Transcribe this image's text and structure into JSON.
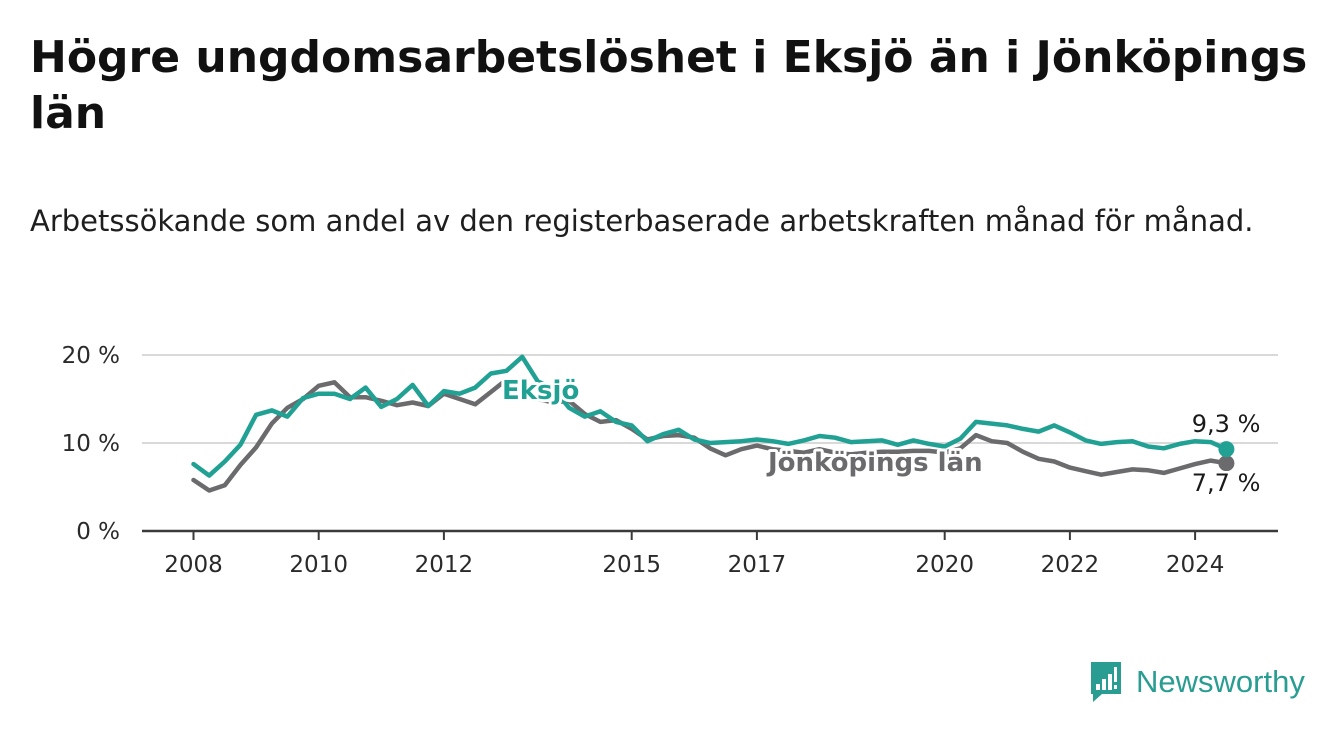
{
  "title": "Högre ungdomsarbetslöshet i Eksjö än i Jönköpings län",
  "subtitle": "Arbetssökande som andel av den registerbaserade arbetskraften månad för månad.",
  "brand": {
    "name": "Newsworthy",
    "logo_icon": "bar-chart-icon",
    "color": "#2a9d92"
  },
  "chart_data": {
    "type": "line",
    "title": "Högre ungdomsarbetslöshet i Eksjö än i Jönköpings län",
    "xlabel": "",
    "ylabel": "",
    "ylim": [
      0,
      20
    ],
    "xlim": [
      2008,
      2024.5
    ],
    "y_ticks": [
      0,
      10,
      20
    ],
    "y_tick_labels": [
      "0 %",
      "10 %",
      "20 %"
    ],
    "x_ticks": [
      2008,
      2010,
      2012,
      2015,
      2017,
      2020,
      2022,
      2024
    ],
    "x_tick_labels": [
      "2008",
      "2010",
      "2012",
      "2015",
      "2017",
      "2020",
      "2022",
      "2024"
    ],
    "grid": true,
    "series": [
      {
        "name": "Jönköpings län",
        "color": "#6b6b6e",
        "end_label": "7,7 %",
        "points": [
          [
            2008.0,
            5.8
          ],
          [
            2008.25,
            4.6
          ],
          [
            2008.5,
            5.2
          ],
          [
            2008.75,
            7.5
          ],
          [
            2009.0,
            9.5
          ],
          [
            2009.25,
            12.2
          ],
          [
            2009.5,
            14.0
          ],
          [
            2009.75,
            15.0
          ],
          [
            2010.0,
            16.5
          ],
          [
            2010.25,
            16.9
          ],
          [
            2010.5,
            15.2
          ],
          [
            2010.75,
            15.2
          ],
          [
            2011.0,
            14.8
          ],
          [
            2011.25,
            14.3
          ],
          [
            2011.5,
            14.6
          ],
          [
            2011.75,
            14.2
          ],
          [
            2012.0,
            15.6
          ],
          [
            2012.25,
            15.0
          ],
          [
            2012.5,
            14.4
          ],
          [
            2012.75,
            15.8
          ],
          [
            2013.0,
            17.2
          ],
          [
            2013.25,
            16.3
          ],
          [
            2013.5,
            15.0
          ],
          [
            2013.75,
            14.6
          ],
          [
            2014.0,
            14.8
          ],
          [
            2014.25,
            13.3
          ],
          [
            2014.5,
            12.4
          ],
          [
            2014.75,
            12.6
          ],
          [
            2015.0,
            11.6
          ],
          [
            2015.25,
            10.4
          ],
          [
            2015.5,
            10.8
          ],
          [
            2015.75,
            10.9
          ],
          [
            2016.0,
            10.6
          ],
          [
            2016.25,
            9.4
          ],
          [
            2016.5,
            8.6
          ],
          [
            2016.75,
            9.3
          ],
          [
            2017.0,
            9.7
          ],
          [
            2017.25,
            9.3
          ],
          [
            2017.5,
            9.1
          ],
          [
            2017.75,
            8.9
          ],
          [
            2018.0,
            9.3
          ],
          [
            2018.25,
            8.9
          ],
          [
            2018.5,
            8.7
          ],
          [
            2018.75,
            8.9
          ],
          [
            2019.0,
            9.0
          ],
          [
            2019.25,
            9.0
          ],
          [
            2019.5,
            9.1
          ],
          [
            2019.75,
            9.1
          ],
          [
            2020.0,
            8.9
          ],
          [
            2020.25,
            9.4
          ],
          [
            2020.5,
            10.9
          ],
          [
            2020.75,
            10.2
          ],
          [
            2021.0,
            10.0
          ],
          [
            2021.25,
            9.0
          ],
          [
            2021.5,
            8.2
          ],
          [
            2021.75,
            7.9
          ],
          [
            2022.0,
            7.2
          ],
          [
            2022.25,
            6.8
          ],
          [
            2022.5,
            6.4
          ],
          [
            2022.75,
            6.7
          ],
          [
            2023.0,
            7.0
          ],
          [
            2023.25,
            6.9
          ],
          [
            2023.5,
            6.6
          ],
          [
            2023.75,
            7.1
          ],
          [
            2024.0,
            7.6
          ],
          [
            2024.25,
            8.0
          ],
          [
            2024.5,
            7.7
          ]
        ]
      },
      {
        "name": "Eksjö",
        "color": "#21a194",
        "end_label": "9,3 %",
        "points": [
          [
            2008.0,
            7.6
          ],
          [
            2008.25,
            6.3
          ],
          [
            2008.5,
            7.9
          ],
          [
            2008.75,
            9.8
          ],
          [
            2009.0,
            13.2
          ],
          [
            2009.25,
            13.7
          ],
          [
            2009.5,
            13.0
          ],
          [
            2009.75,
            15.1
          ],
          [
            2010.0,
            15.6
          ],
          [
            2010.25,
            15.6
          ],
          [
            2010.5,
            15.0
          ],
          [
            2010.75,
            16.3
          ],
          [
            2011.0,
            14.1
          ],
          [
            2011.25,
            15.0
          ],
          [
            2011.5,
            16.6
          ],
          [
            2011.75,
            14.2
          ],
          [
            2012.0,
            15.9
          ],
          [
            2012.25,
            15.6
          ],
          [
            2012.5,
            16.3
          ],
          [
            2012.75,
            17.9
          ],
          [
            2013.0,
            18.2
          ],
          [
            2013.25,
            19.8
          ],
          [
            2013.5,
            17.0
          ],
          [
            2013.75,
            16.2
          ],
          [
            2014.0,
            14.0
          ],
          [
            2014.25,
            13.0
          ],
          [
            2014.5,
            13.6
          ],
          [
            2014.75,
            12.4
          ],
          [
            2015.0,
            12.0
          ],
          [
            2015.25,
            10.2
          ],
          [
            2015.5,
            11.0
          ],
          [
            2015.75,
            11.5
          ],
          [
            2016.0,
            10.4
          ],
          [
            2016.25,
            10.0
          ],
          [
            2016.5,
            10.1
          ],
          [
            2016.75,
            10.2
          ],
          [
            2017.0,
            10.4
          ],
          [
            2017.25,
            10.2
          ],
          [
            2017.5,
            9.9
          ],
          [
            2017.75,
            10.3
          ],
          [
            2018.0,
            10.8
          ],
          [
            2018.25,
            10.6
          ],
          [
            2018.5,
            10.1
          ],
          [
            2018.75,
            10.2
          ],
          [
            2019.0,
            10.3
          ],
          [
            2019.25,
            9.8
          ],
          [
            2019.5,
            10.3
          ],
          [
            2019.75,
            9.9
          ],
          [
            2020.0,
            9.6
          ],
          [
            2020.25,
            10.5
          ],
          [
            2020.5,
            12.4
          ],
          [
            2020.75,
            12.2
          ],
          [
            2021.0,
            12.0
          ],
          [
            2021.25,
            11.6
          ],
          [
            2021.5,
            11.3
          ],
          [
            2021.75,
            12.0
          ],
          [
            2022.0,
            11.2
          ],
          [
            2022.25,
            10.3
          ],
          [
            2022.5,
            9.9
          ],
          [
            2022.75,
            10.1
          ],
          [
            2023.0,
            10.2
          ],
          [
            2023.25,
            9.6
          ],
          [
            2023.5,
            9.4
          ],
          [
            2023.75,
            9.9
          ],
          [
            2024.0,
            10.2
          ],
          [
            2024.25,
            10.1
          ],
          [
            2024.5,
            9.3
          ]
        ]
      }
    ]
  }
}
